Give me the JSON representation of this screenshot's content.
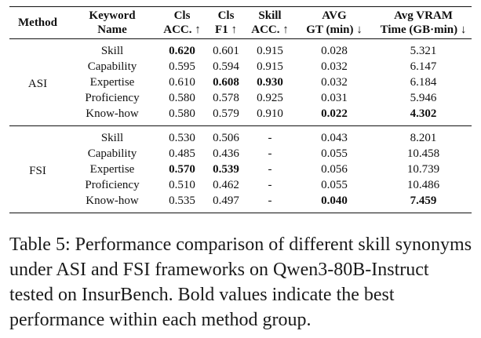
{
  "table": {
    "headers": [
      {
        "line1": "Method",
        "line2": ""
      },
      {
        "line1": "Keyword",
        "line2": "Name"
      },
      {
        "line1": "Cls",
        "line2": "ACC. ↑"
      },
      {
        "line1": "Cls",
        "line2": "F1 ↑"
      },
      {
        "line1": "Skill",
        "line2": "ACC. ↑"
      },
      {
        "line1": "AVG",
        "line2": "GT (min) ↓"
      },
      {
        "line1": "Avg VRAM",
        "line2": "Time (GB·min) ↓"
      }
    ],
    "groups": [
      {
        "method": "ASI",
        "rows": [
          {
            "name": "Skill",
            "cls_acc": "0.620",
            "cls_f1": "0.601",
            "skill_acc": "0.915",
            "avg_gt": "0.028",
            "vram": "5.321",
            "bold": [
              "cls_acc"
            ]
          },
          {
            "name": "Capability",
            "cls_acc": "0.595",
            "cls_f1": "0.594",
            "skill_acc": "0.915",
            "avg_gt": "0.032",
            "vram": "6.147",
            "bold": []
          },
          {
            "name": "Expertise",
            "cls_acc": "0.610",
            "cls_f1": "0.608",
            "skill_acc": "0.930",
            "avg_gt": "0.032",
            "vram": "6.184",
            "bold": [
              "cls_f1",
              "skill_acc"
            ]
          },
          {
            "name": "Proficiency",
            "cls_acc": "0.580",
            "cls_f1": "0.578",
            "skill_acc": "0.925",
            "avg_gt": "0.031",
            "vram": "5.946",
            "bold": []
          },
          {
            "name": "Know-how",
            "cls_acc": "0.580",
            "cls_f1": "0.579",
            "skill_acc": "0.910",
            "avg_gt": "0.022",
            "vram": "4.302",
            "bold": [
              "avg_gt",
              "vram"
            ]
          }
        ]
      },
      {
        "method": "FSI",
        "rows": [
          {
            "name": "Skill",
            "cls_acc": "0.530",
            "cls_f1": "0.506",
            "skill_acc": "-",
            "avg_gt": "0.043",
            "vram": "8.201",
            "bold": []
          },
          {
            "name": "Capability",
            "cls_acc": "0.485",
            "cls_f1": "0.436",
            "skill_acc": "-",
            "avg_gt": "0.055",
            "vram": "10.458",
            "bold": []
          },
          {
            "name": "Expertise",
            "cls_acc": "0.570",
            "cls_f1": "0.539",
            "skill_acc": "-",
            "avg_gt": "0.056",
            "vram": "10.739",
            "bold": [
              "cls_acc",
              "cls_f1"
            ]
          },
          {
            "name": "Proficiency",
            "cls_acc": "0.510",
            "cls_f1": "0.462",
            "skill_acc": "-",
            "avg_gt": "0.055",
            "vram": "10.486",
            "bold": []
          },
          {
            "name": "Know-how",
            "cls_acc": "0.535",
            "cls_f1": "0.497",
            "skill_acc": "-",
            "avg_gt": "0.040",
            "vram": "7.459",
            "bold": [
              "avg_gt",
              "vram"
            ]
          }
        ]
      }
    ]
  },
  "caption": "Table 5: Performance comparison of different skill synonyms under ASI and FSI frameworks on Qwen3-80B-Instruct tested on InsurBench. Bold values indicate the best performance within each method group."
}
